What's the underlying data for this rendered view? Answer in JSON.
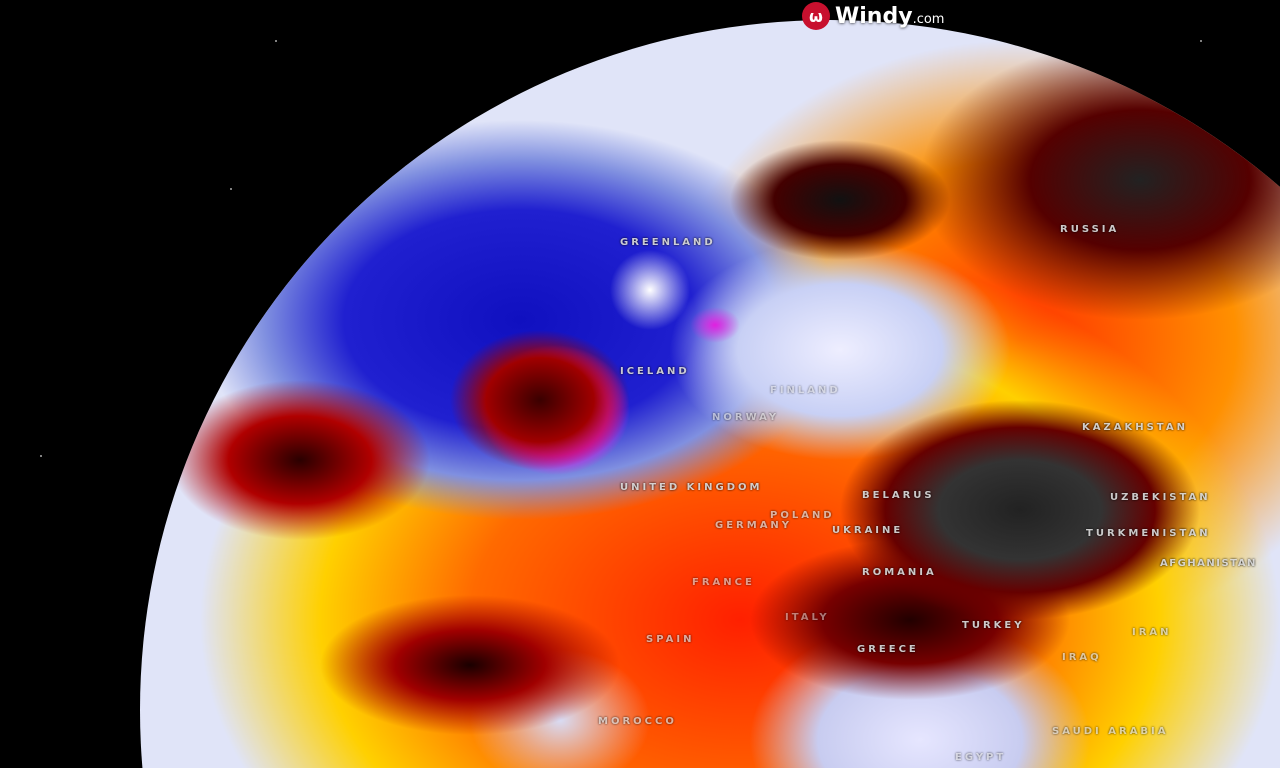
{
  "brand": {
    "name": "Windy",
    "suffix": ".com",
    "icon": "windy-logo-icon",
    "color": "#c8102e"
  },
  "map": {
    "labels": [
      {
        "id": "greenland",
        "text": "GREENLAND"
      },
      {
        "id": "iceland",
        "text": "ICELAND"
      },
      {
        "id": "russia",
        "text": "RUSSIA"
      },
      {
        "id": "finland",
        "text": "FINLAND"
      },
      {
        "id": "norway",
        "text": "NORWAY"
      },
      {
        "id": "united-kingdom",
        "text": "UNITED KINGDOM"
      },
      {
        "id": "belarus",
        "text": "BELARUS"
      },
      {
        "id": "poland",
        "text": "POLAND"
      },
      {
        "id": "germany",
        "text": "GERMANY"
      },
      {
        "id": "ukraine",
        "text": "UKRAINE"
      },
      {
        "id": "kazakhstan",
        "text": "KAZAKHSTAN"
      },
      {
        "id": "uzbekistan",
        "text": "UZBEKISTAN"
      },
      {
        "id": "turkmenistan",
        "text": "TURKMENISTAN"
      },
      {
        "id": "afghanistan",
        "text": "AFGHANISTAN"
      },
      {
        "id": "france",
        "text": "FRANCE"
      },
      {
        "id": "romania",
        "text": "ROMANIA"
      },
      {
        "id": "italy",
        "text": "ITALY"
      },
      {
        "id": "spain",
        "text": "SPAIN"
      },
      {
        "id": "greece",
        "text": "GREECE"
      },
      {
        "id": "turkey",
        "text": "TURKEY"
      },
      {
        "id": "iran",
        "text": "IRAN"
      },
      {
        "id": "iraq",
        "text": "IRAQ"
      },
      {
        "id": "morocco",
        "text": "MOROCCO"
      },
      {
        "id": "saudi-arabia",
        "text": "SAUDI ARABIA"
      },
      {
        "id": "egypt",
        "text": "EGYPT"
      }
    ]
  }
}
